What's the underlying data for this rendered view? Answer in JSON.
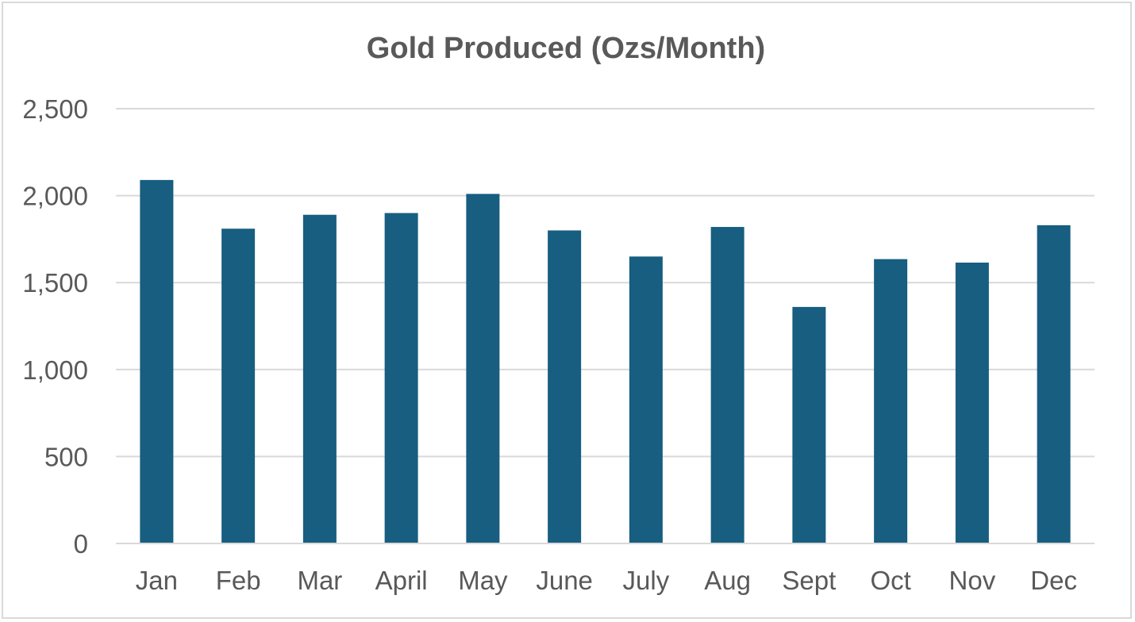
{
  "chart_data": {
    "type": "bar",
    "title": "Gold Produced (Ozs/Month)",
    "xlabel": "",
    "ylabel": "",
    "categories": [
      "Jan",
      "Feb",
      "Mar",
      "April",
      "May",
      "June",
      "July",
      "Aug",
      "Sept",
      "Oct",
      "Nov",
      "Dec"
    ],
    "values": [
      2090,
      1810,
      1890,
      1900,
      2010,
      1800,
      1650,
      1820,
      1360,
      1635,
      1615,
      1830
    ],
    "ylim": [
      0,
      2500
    ],
    "yticks": [
      0,
      500,
      1000,
      1500,
      2000,
      2500
    ],
    "ytick_labels": [
      "0",
      "500",
      "1,000",
      "1,500",
      "2,000",
      "2,500"
    ],
    "grid": true,
    "legend": "none",
    "bar_color": "#175E80",
    "gridline_color": "#D9D9D9",
    "text_color": "#595959"
  }
}
